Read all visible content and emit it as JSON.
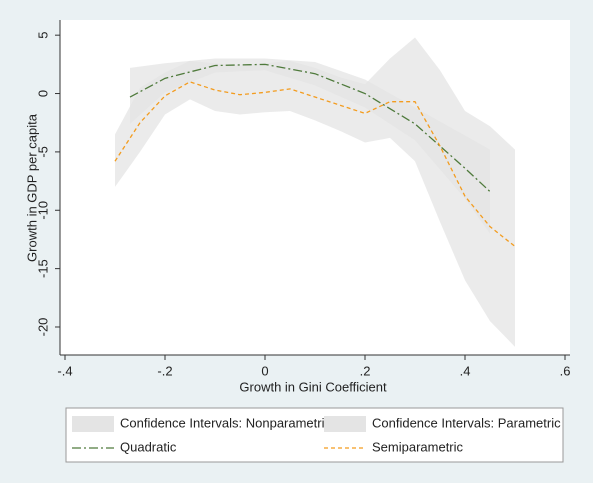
{
  "chart_data": {
    "type": "line",
    "x_label": "Growth in Gini Coefficient",
    "y_label": "Growth in GDP per capita",
    "xlim": [
      -0.41,
      0.61
    ],
    "ylim": [
      -22.4,
      6.3
    ],
    "xticks": [
      {
        "value": -0.4,
        "label": "-.4"
      },
      {
        "value": -0.2,
        "label": "-.2"
      },
      0,
      {
        "value": 0.2,
        "label": ".2"
      },
      {
        "value": 0.4,
        "label": ".4"
      },
      {
        "value": 0.6,
        "label": ".6"
      }
    ],
    "yticks": [
      5,
      0,
      -5,
      -10,
      -15,
      -20
    ],
    "series": [
      {
        "name": "Confidence Intervals: Nonparametric",
        "color": "#e4e4e4",
        "x": [
          -0.3,
          -0.25,
          -0.2,
          -0.15,
          -0.1,
          -0.05,
          0,
          0.05,
          0.1,
          0.15,
          0.2,
          0.25,
          0.3,
          0.35,
          0.4,
          0.45,
          0.5
        ],
        "upper": [
          -3.5,
          0.5,
          1.8,
          2.8,
          2.6,
          2.4,
          2.6,
          2.8,
          2.2,
          1.4,
          0.8,
          3.0,
          4.8,
          2.0,
          -1.5,
          -2.8,
          -4.8
        ],
        "lower": [
          -8.0,
          -5.0,
          -1.8,
          -0.5,
          -1.5,
          -1.8,
          -1.6,
          -1.5,
          -2.3,
          -3.2,
          -4.2,
          -3.8,
          -5.8,
          -11.0,
          -16.0,
          -19.5,
          -21.7
        ]
      },
      {
        "name": "Confidence Intervals: Parametric",
        "color": "#e4e4e4",
        "x": [
          -0.27,
          -0.2,
          -0.1,
          0,
          0.1,
          0.2,
          0.3,
          0.4,
          0.45
        ],
        "upper": [
          2.2,
          2.6,
          3.0,
          3.0,
          2.7,
          1.2,
          -1.2,
          -3.6,
          -4.8
        ],
        "lower": [
          -2.6,
          0.1,
          1.8,
          2.0,
          0.7,
          -1.2,
          -4.0,
          -9.0,
          -12.0
        ]
      },
      {
        "name": "Quadratic",
        "color": "#4f7a3c",
        "line_style": "longdash",
        "x": [
          -0.27,
          -0.2,
          -0.1,
          0,
          0.1,
          0.2,
          0.3,
          0.4,
          0.45
        ],
        "values": [
          -0.3,
          1.3,
          2.4,
          2.5,
          1.7,
          0,
          -2.6,
          -6.4,
          -8.4
        ]
      },
      {
        "name": "Semiparametric",
        "color": "#f39c1f",
        "line_style": "dash",
        "x": [
          -0.3,
          -0.25,
          -0.2,
          -0.15,
          -0.1,
          -0.05,
          0,
          0.05,
          0.1,
          0.15,
          0.2,
          0.25,
          0.3,
          0.35,
          0.4,
          0.45,
          0.5
        ],
        "values": [
          -5.8,
          -2.5,
          -0.2,
          1.0,
          0.3,
          -0.1,
          0.1,
          0.4,
          -0.3,
          -1.0,
          -1.7,
          -0.7,
          -0.7,
          -4.5,
          -8.8,
          -11.4,
          -13.1
        ]
      }
    ]
  }
}
